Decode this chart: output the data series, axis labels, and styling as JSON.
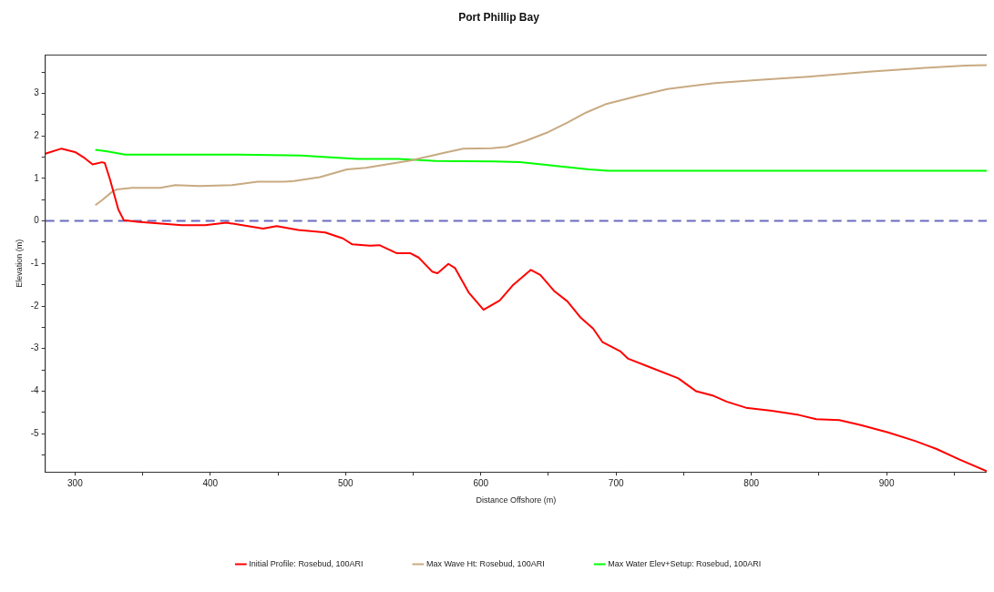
{
  "chart_data": {
    "type": "line",
    "title": "Port Phillip Bay",
    "xlabel": "Distance Offshore (m)",
    "ylabel": "Elevation (m)",
    "xlim": [
      278,
      974
    ],
    "ylim": [
      -5.9,
      3.9
    ],
    "xticks": [
      300,
      {
        "value": 350,
        "label": null
      },
      400,
      {
        "value": 450,
        "label": null
      },
      500,
      {
        "value": 550,
        "label": null
      },
      600,
      {
        "value": 650,
        "label": null
      },
      700,
      {
        "value": 750,
        "label": null
      },
      800,
      {
        "value": 850,
        "label": null
      },
      900,
      {
        "value": 950,
        "label": null
      }
    ],
    "yticks": [
      {
        "value": -5.5,
        "label": null
      },
      -5,
      {
        "value": -4.5,
        "label": null
      },
      -4,
      {
        "value": -3.5,
        "label": null
      },
      -3,
      {
        "value": -2.5,
        "label": null
      },
      -2,
      {
        "value": -1.5,
        "label": null
      },
      -1,
      {
        "value": -0.5,
        "label": null
      },
      0,
      {
        "value": 0.5,
        "label": null
      },
      1,
      {
        "value": 1.5,
        "label": null
      },
      2,
      {
        "value": 2.5,
        "label": null
      },
      3,
      {
        "value": 3.5,
        "label": null
      }
    ],
    "grid": false,
    "legend": "bottom",
    "marker": "none",
    "line_style": "solid",
    "ref_lines": [
      {
        "axis": "y",
        "value": 0,
        "color": "#6b6bbd",
        "line_style": "dashed"
      }
    ],
    "series": [
      {
        "name": "Initial Profile: Rosebud, 100ARI",
        "color": "#ff0000",
        "x": [
          278,
          290,
          300,
          307,
          313,
          320,
          322,
          326,
          332,
          336,
          346,
          379,
          396,
          412,
          439,
          449,
          465,
          485,
          498,
          505,
          518,
          525,
          538,
          548,
          554,
          564,
          568,
          576,
          581,
          591,
          602,
          614,
          624,
          637,
          644,
          654,
          664,
          674,
          683,
          690,
          703,
          709,
          726,
          746,
          759,
          772,
          782,
          796,
          815,
          835,
          848,
          865,
          881,
          901,
          921,
          937,
          954,
          974
        ],
        "values": [
          1.58,
          1.7,
          1.62,
          1.48,
          1.33,
          1.38,
          1.36,
          0.96,
          0.27,
          0.02,
          -0.02,
          -0.1,
          -0.1,
          -0.04,
          -0.18,
          -0.12,
          -0.21,
          -0.27,
          -0.41,
          -0.55,
          -0.58,
          -0.57,
          -0.76,
          -0.76,
          -0.86,
          -1.19,
          -1.23,
          -1.01,
          -1.11,
          -1.68,
          -2.09,
          -1.87,
          -1.5,
          -1.15,
          -1.27,
          -1.64,
          -1.89,
          -2.28,
          -2.53,
          -2.85,
          -3.06,
          -3.24,
          -3.45,
          -3.7,
          -4.0,
          -4.11,
          -4.25,
          -4.39,
          -4.46,
          -4.56,
          -4.66,
          -4.68,
          -4.8,
          -4.97,
          -5.17,
          -5.36,
          -5.61,
          -5.88
        ]
      },
      {
        "name": "Max Wave Ht: Rosebud, 100ARI",
        "color": "#c8aa82",
        "x": [
          315,
          320,
          328,
          331,
          342,
          363,
          374,
          392,
          416,
          435,
          455,
          462,
          481,
          501,
          515,
          548,
          573,
          587,
          608,
          619,
          633,
          650,
          664,
          678,
          692,
          715,
          738,
          773,
          808,
          842,
          889,
          924,
          958,
          974
        ],
        "values": [
          0.37,
          0.49,
          0.7,
          0.74,
          0.78,
          0.78,
          0.84,
          0.82,
          0.84,
          0.92,
          0.92,
          0.94,
          1.03,
          1.21,
          1.25,
          1.42,
          1.6,
          1.7,
          1.71,
          1.74,
          1.88,
          2.09,
          2.31,
          2.55,
          2.74,
          2.93,
          3.1,
          3.24,
          3.32,
          3.39,
          3.51,
          3.59,
          3.65,
          3.66
        ]
      },
      {
        "name": "Max Water Elev+Setup: Rosebud, 100ARI",
        "color": "#00ff00",
        "x": [
          315,
          323,
          337,
          421,
          467,
          486,
          509,
          539,
          567,
          610,
          629,
          645,
          659,
          680,
          694,
          974
        ],
        "values": [
          1.67,
          1.64,
          1.56,
          1.56,
          1.54,
          1.5,
          1.46,
          1.46,
          1.41,
          1.4,
          1.38,
          1.33,
          1.28,
          1.21,
          1.18,
          1.18
        ]
      }
    ]
  }
}
